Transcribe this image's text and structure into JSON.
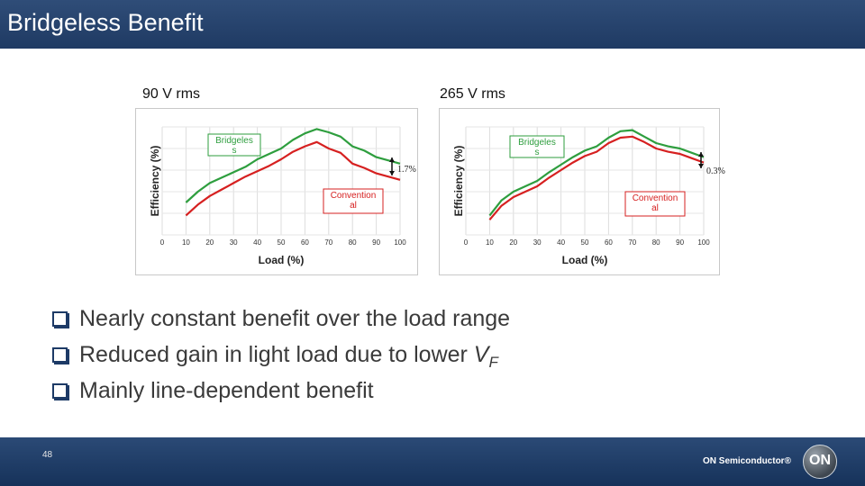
{
  "slide": {
    "title": "Bridgeless Benefit",
    "page_number": "48",
    "company": "ON Semiconductor",
    "logo_text": "ON",
    "colors": {
      "header": "#1f3a63",
      "bridgeless": "#2e9e3e",
      "conventional": "#d62020"
    }
  },
  "bullets": [
    {
      "text": "Nearly constant benefit over the load range"
    },
    {
      "text": "Reduced gain in light load due to lower ",
      "symbol": "V",
      "subscript": "F"
    },
    {
      "text": "Mainly line-dependent benefit"
    }
  ],
  "chart_data": [
    {
      "type": "line",
      "title": "90 V rms",
      "xlabel": "Load (%)",
      "ylabel": "Efficiency (%)",
      "xlim": [
        0,
        100
      ],
      "ylim": [
        0,
        100
      ],
      "xticks": [
        0,
        10,
        20,
        30,
        40,
        50,
        60,
        70,
        80,
        90,
        100
      ],
      "grid": true,
      "series": [
        {
          "name": "Bridgeless",
          "label": "Bridgeless",
          "x": [
            10,
            15,
            20,
            25,
            30,
            35,
            40,
            45,
            50,
            55,
            60,
            65,
            70,
            75,
            80,
            85,
            90,
            95,
            100
          ],
          "y": [
            30,
            40,
            48,
            53,
            58,
            63,
            70,
            75,
            80,
            88,
            94,
            98,
            95,
            91,
            82,
            78,
            72,
            69,
            66
          ]
        },
        {
          "name": "Conventional",
          "label": "Conventional",
          "x": [
            10,
            15,
            20,
            25,
            30,
            35,
            40,
            45,
            50,
            55,
            60,
            65,
            70,
            75,
            80,
            85,
            90,
            95,
            100
          ],
          "y": [
            18,
            28,
            36,
            42,
            48,
            54,
            59,
            64,
            70,
            77,
            82,
            86,
            80,
            76,
            66,
            62,
            57,
            54,
            51
          ]
        }
      ],
      "annotation": "1.7%"
    },
    {
      "type": "line",
      "title": "265 V rms",
      "xlabel": "Load (%)",
      "ylabel": "Efficiency (%)",
      "xlim": [
        0,
        100
      ],
      "ylim": [
        0,
        100
      ],
      "xticks": [
        0,
        10,
        20,
        30,
        40,
        50,
        60,
        70,
        80,
        90,
        100
      ],
      "grid": true,
      "series": [
        {
          "name": "Bridgeless",
          "label": "Bridgeless",
          "x": [
            10,
            15,
            20,
            25,
            30,
            35,
            40,
            45,
            50,
            55,
            60,
            65,
            70,
            75,
            80,
            85,
            90,
            95,
            100
          ],
          "y": [
            18,
            32,
            40,
            45,
            50,
            58,
            65,
            72,
            78,
            82,
            90,
            96,
            97,
            91,
            85,
            82,
            80,
            76,
            72
          ]
        },
        {
          "name": "Conventional",
          "label": "Conventional",
          "x": [
            10,
            15,
            20,
            25,
            30,
            35,
            40,
            45,
            50,
            55,
            60,
            65,
            70,
            75,
            80,
            85,
            90,
            95,
            100
          ],
          "y": [
            14,
            27,
            35,
            40,
            45,
            53,
            60,
            67,
            73,
            77,
            85,
            90,
            91,
            86,
            80,
            77,
            75,
            71,
            67
          ]
        }
      ],
      "annotation": "0.3%"
    }
  ]
}
